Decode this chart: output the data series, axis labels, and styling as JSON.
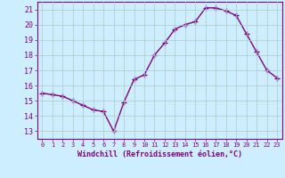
{
  "x": [
    0,
    1,
    2,
    3,
    4,
    5,
    6,
    7,
    8,
    9,
    10,
    11,
    12,
    13,
    14,
    15,
    16,
    17,
    18,
    19,
    20,
    21,
    22,
    23
  ],
  "y": [
    15.5,
    15.4,
    15.3,
    15.0,
    14.7,
    14.4,
    14.3,
    13.0,
    14.9,
    16.4,
    16.7,
    18.0,
    18.8,
    19.7,
    20.0,
    20.2,
    21.1,
    21.1,
    20.9,
    20.6,
    19.4,
    18.2,
    17.0,
    16.5
  ],
  "line_color": "#800080",
  "marker": "+",
  "markersize": 4,
  "linewidth": 1.0,
  "xlim": [
    -0.5,
    23.5
  ],
  "ylim": [
    12.5,
    21.5
  ],
  "yticks": [
    13,
    14,
    15,
    16,
    17,
    18,
    19,
    20,
    21
  ],
  "xticks": [
    0,
    1,
    2,
    3,
    4,
    5,
    6,
    7,
    8,
    9,
    10,
    11,
    12,
    13,
    14,
    15,
    16,
    17,
    18,
    19,
    20,
    21,
    22,
    23
  ],
  "xlabel": "Windchill (Refroidissement éolien,°C)",
  "bg_color": "#cceeff",
  "grid_color": "#aacccc",
  "tick_color": "#800080",
  "label_color": "#800080",
  "border_color": "#800080",
  "xlabel_fontsize": 6.0,
  "ytick_fontsize": 6.0,
  "xtick_fontsize": 5.0
}
